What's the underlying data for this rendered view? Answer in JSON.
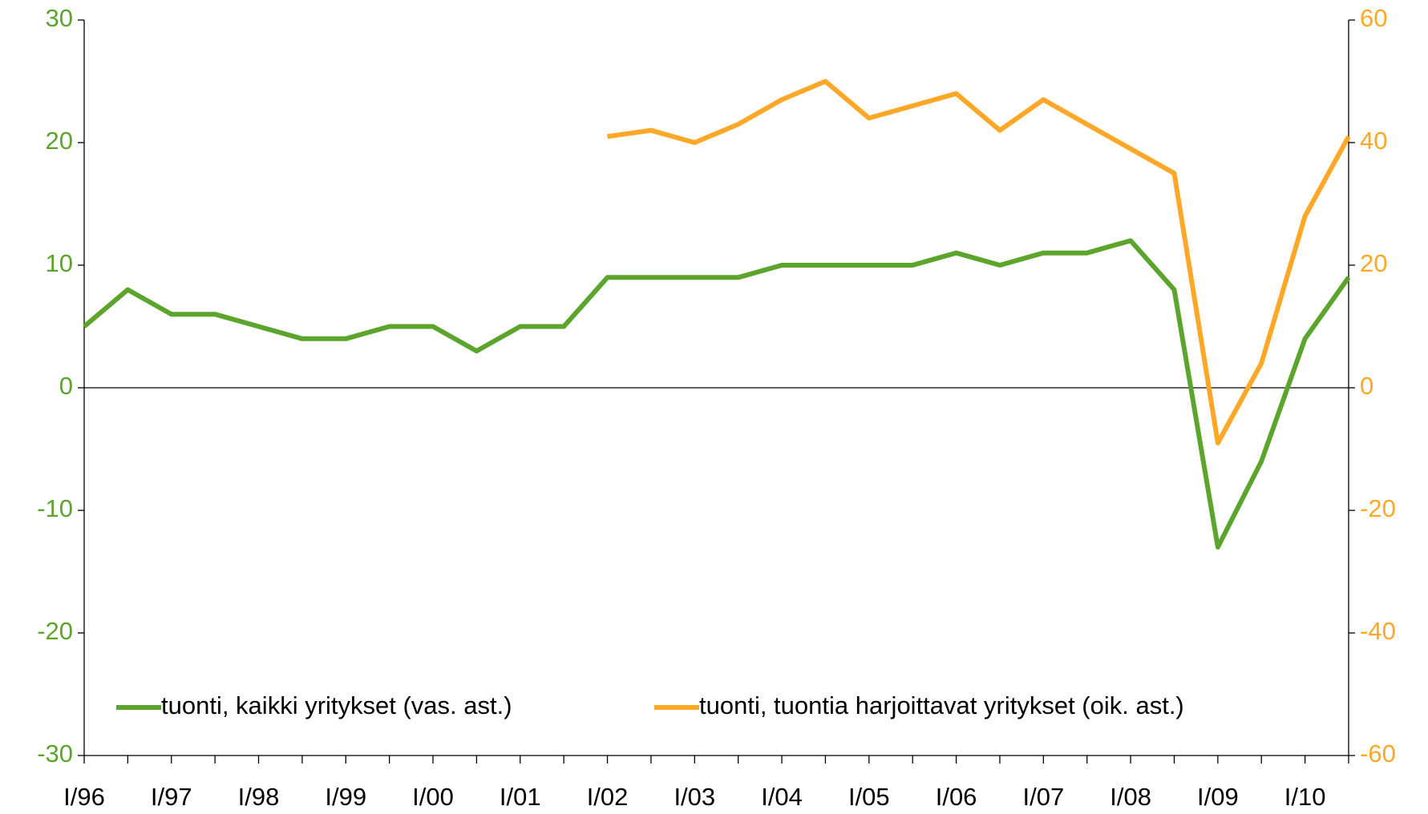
{
  "chart_data": {
    "type": "line",
    "categories": [
      "I/96",
      null,
      "I/97",
      null,
      "I/98",
      null,
      "I/99",
      null,
      "I/00",
      null,
      "I/01",
      null,
      "I/02",
      null,
      "I/03",
      null,
      "I/04",
      null,
      "I/05",
      null,
      "I/06",
      null,
      "I/07",
      null,
      "I/08",
      null,
      "I/09",
      null,
      "I/10",
      null
    ],
    "series": [
      {
        "name": "tuonti, kaikki yritykset (vas. ast.)",
        "color": "#5ba52d",
        "values": [
          5,
          8,
          6,
          6,
          5,
          4,
          4,
          5,
          5,
          3,
          5,
          5,
          9,
          9,
          9,
          9,
          10,
          10,
          10,
          10,
          11,
          10,
          11,
          11,
          12,
          8,
          -13,
          -6,
          4,
          9
        ]
      },
      {
        "name": "tuonti, tuontia harjoittavat yritykset (oik. ast.)",
        "color": "#ffa727",
        "axis": "y2",
        "values": [
          null,
          null,
          null,
          null,
          null,
          null,
          null,
          null,
          null,
          null,
          null,
          null,
          41,
          42,
          40,
          43,
          47,
          50,
          44,
          46,
          48,
          42,
          47,
          43,
          39,
          35,
          -9,
          4,
          28,
          41
        ]
      }
    ],
    "ylim": [
      -30,
      30
    ],
    "yticks": [
      -30,
      -20,
      -10,
      0,
      10,
      20,
      30
    ],
    "y2lim": [
      -60,
      60
    ],
    "y2ticks": [
      -60,
      -40,
      -20,
      0,
      20,
      40,
      60
    ],
    "legend": "bottom"
  }
}
